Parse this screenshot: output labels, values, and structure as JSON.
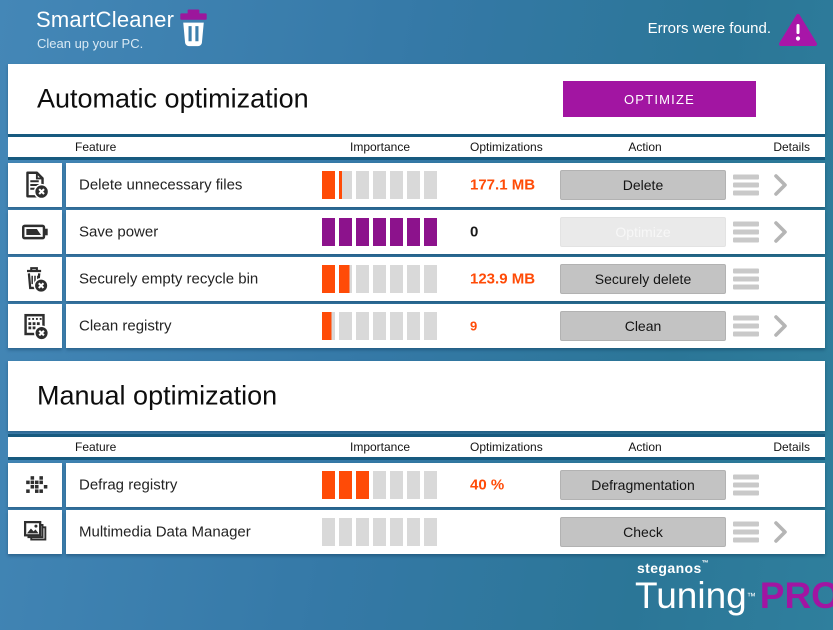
{
  "app": {
    "title": "SmartCleaner",
    "subtitle": "Clean up your PC.",
    "status": "Errors were found."
  },
  "colors": {
    "accent_magenta": "#a215a2",
    "orange": "#ff4b07",
    "purple": "#8c128c",
    "segment_gray": "#d9d9d9"
  },
  "sections": [
    {
      "title": "Automatic optimization",
      "button_label": "OPTIMIZE",
      "columns": [
        "Feature",
        "Importance",
        "Optimizations",
        "Action",
        "Details"
      ],
      "rows": [
        {
          "icon": "file-delete-icon",
          "feature": "Delete unnecessary files",
          "importance": 1.25,
          "importance_color": "#ff4b07",
          "value": "177.1 MB",
          "value_color": "#ff4b07",
          "value_small": false,
          "action": "Delete",
          "action_enabled": true,
          "details_chevron": true
        },
        {
          "icon": "battery-icon",
          "feature": "Save power",
          "importance": 7,
          "importance_color": "#8c128c",
          "value": "0",
          "value_color": "#1a1a1a",
          "value_small": false,
          "action": "Optimize",
          "action_enabled": false,
          "details_chevron": true
        },
        {
          "icon": "recycle-bin-delete-icon",
          "feature": "Securely empty recycle bin",
          "importance": 1.8,
          "importance_color": "#ff4b07",
          "value": "123.9 MB",
          "value_color": "#ff4b07",
          "value_small": false,
          "action": "Securely delete",
          "action_enabled": true,
          "details_chevron": false
        },
        {
          "icon": "registry-clean-icon",
          "feature": "Clean registry",
          "importance": 0.72,
          "importance_color": "#ff4b07",
          "value": "9",
          "value_color": "#ff4b07",
          "value_small": true,
          "action": "Clean",
          "action_enabled": true,
          "details_chevron": true
        }
      ]
    },
    {
      "title": "Manual optimization",
      "button_label": "",
      "columns": [
        "Feature",
        "Importance",
        "Optimizations",
        "Action",
        "Details"
      ],
      "rows": [
        {
          "icon": "defrag-icon",
          "feature": "Defrag registry",
          "importance": 3,
          "importance_color": "#ff4b07",
          "value": "40 %",
          "value_color": "#ff4b07",
          "value_small": false,
          "action": "Defragmentation",
          "action_enabled": true,
          "details_chevron": false
        },
        {
          "icon": "multimedia-icon",
          "feature": "Multimedia Data Manager",
          "importance": 0,
          "importance_color": "#ff4b07",
          "value": "",
          "value_color": "#1a1a1a",
          "value_small": false,
          "action": "Check",
          "action_enabled": true,
          "details_chevron": true
        }
      ]
    }
  ],
  "footer": {
    "brand": "steganos",
    "product": "Tuning",
    "edition": "PRO",
    "trademark": "™"
  }
}
